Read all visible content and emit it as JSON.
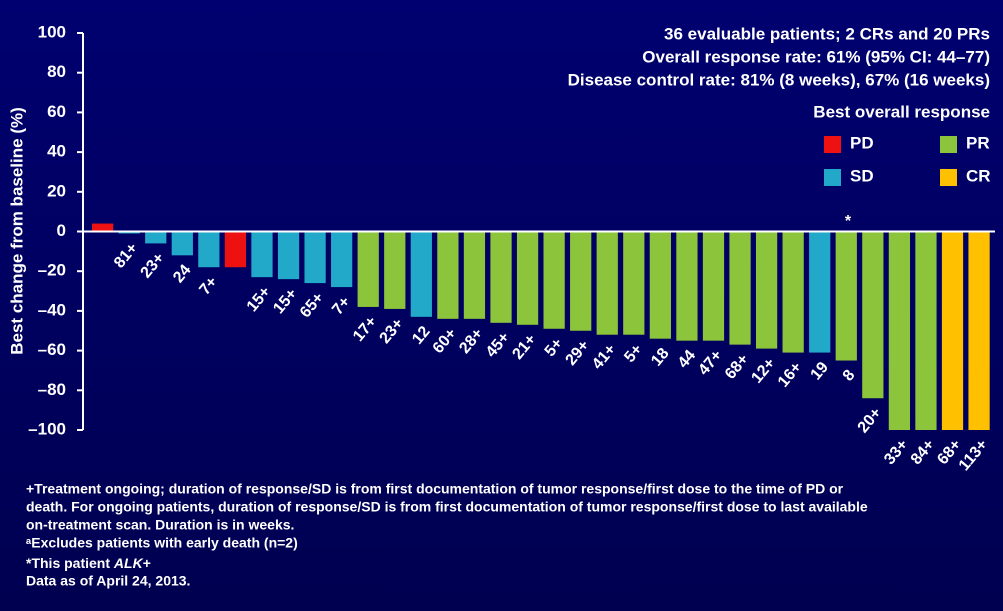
{
  "chart_data": {
    "type": "waterfall",
    "y_label": "Best change from baseline (%)",
    "ylim": [
      -100,
      100
    ],
    "yticks": [
      {
        "value": -100,
        "label": "–100"
      },
      {
        "value": -80,
        "label": "–80"
      },
      {
        "value": -60,
        "label": "–60"
      },
      {
        "value": -40,
        "label": "–40"
      },
      {
        "value": -20,
        "label": "–20"
      },
      0,
      20,
      40,
      60,
      80,
      100
    ],
    "categories": [
      null,
      "81+",
      "23+",
      "24",
      "7+",
      null,
      "15+",
      "15+",
      "65+",
      "7+",
      "17+",
      "23+",
      "12",
      "60+",
      "28+",
      "45+",
      "21+",
      "5+",
      "29+",
      "41+",
      "5+",
      "18",
      "44",
      "47+",
      "68+",
      "12+",
      "16+",
      "19",
      "8",
      "20+",
      "33+",
      "84+",
      "68+",
      "113+"
    ],
    "values": [
      4,
      -1,
      -6,
      -12,
      -18,
      -18,
      -23,
      -24,
      -26,
      -28,
      -38,
      -39,
      -43,
      -44,
      -44,
      -46,
      -47,
      -49,
      -50,
      -52,
      -52,
      -54,
      -55,
      -55,
      -57,
      -59,
      -61,
      -61,
      -65,
      -84,
      -100,
      -100,
      -100,
      -100
    ],
    "bar_colors": [
      "#ee1111",
      "#22a8c8",
      "#22a8c8",
      "#22a8c8",
      "#22a8c8",
      "#ee1111",
      "#22a8c8",
      "#22a8c8",
      "#22a8c8",
      "#22a8c8",
      "#8cc43c",
      "#8cc43c",
      "#22a8c8",
      "#8cc43c",
      "#8cc43c",
      "#8cc43c",
      "#8cc43c",
      "#8cc43c",
      "#8cc43c",
      "#8cc43c",
      "#8cc43c",
      "#8cc43c",
      "#8cc43c",
      "#8cc43c",
      "#8cc43c",
      "#8cc43c",
      "#8cc43c",
      "#22a8c8",
      "#8cc43c",
      "#8cc43c",
      "#8cc43c",
      "#8cc43c",
      "#ffc000",
      "#ffc000"
    ],
    "annotations": [
      "36 evaluable patients; 2 CRs and 20 PRs",
      "Overall response rate: 61% (95% CI: 44–77)",
      "Disease control rate: 81% (8 weeks), 67% (16 weeks)"
    ],
    "asterisk": "*",
    "legend_title": "Best overall response",
    "legend": [
      {
        "name": "PD",
        "color": "#ee1111"
      },
      {
        "name": "PR",
        "color": "#8cc43c"
      },
      {
        "name": "SD",
        "color": "#22a8c8"
      },
      {
        "name": "CR",
        "color": "#ffc000"
      }
    ],
    "footnotes": [
      "+Treatment ongoing; duration of response/SD is from first documentation of tumor response/first dose to  the time of PD or",
      "death. For ongoing patients, duration of response/SD is from first documentation of tumor response/first dose to last available",
      "on-treatment scan. Duration is in weeks.",
      "ᵃExcludes patients with early death (n=2)"
    ],
    "footnote_alk": {
      "prefix": "*This patient ",
      "italic": "ALK",
      "suffix": "+"
    },
    "footnote_date": "Data as of April  24, 2013."
  }
}
